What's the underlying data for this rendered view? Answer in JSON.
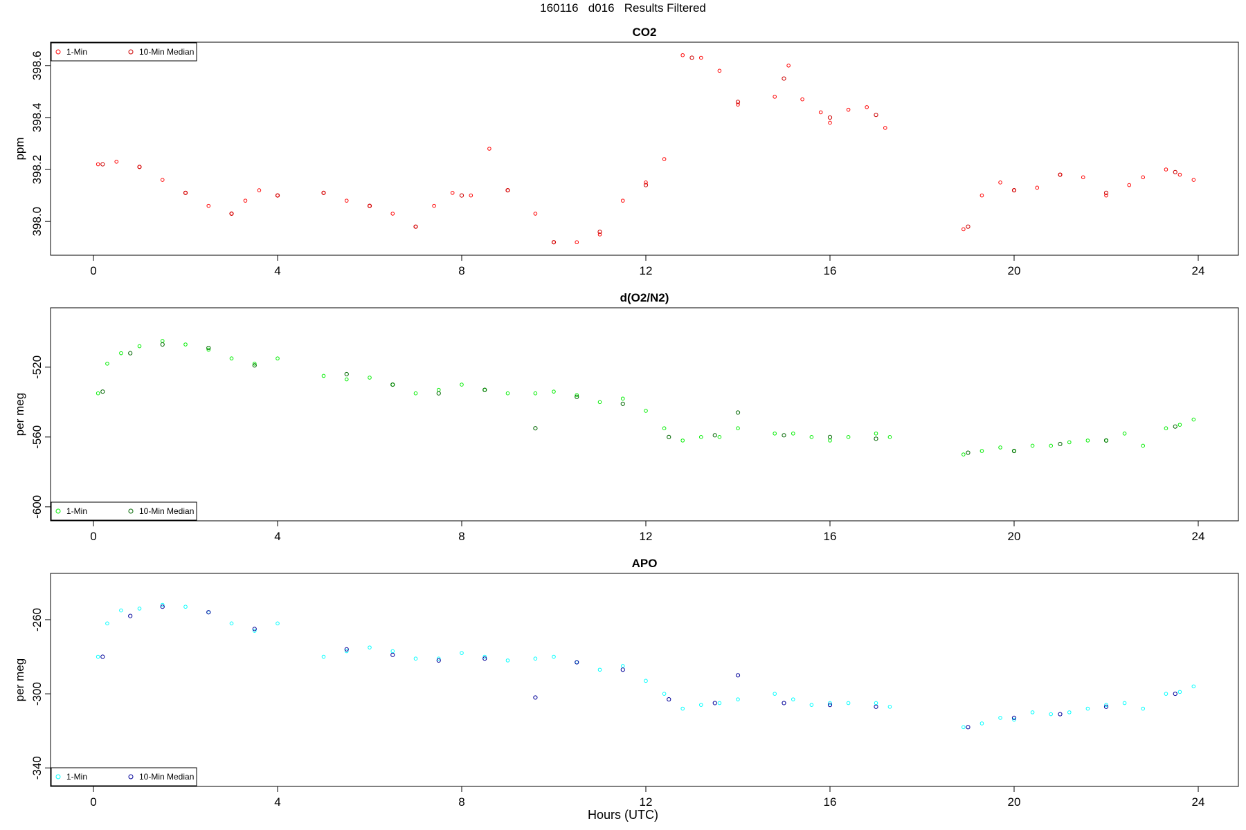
{
  "figure_title": "160116   d016   Results Filtered",
  "x_axis_label": "Hours (UTC)",
  "chart_data": [
    {
      "type": "scatter",
      "title": "CO2",
      "ylabel": "ppm",
      "xlim": [
        0,
        24
      ],
      "ylim": [
        397.87,
        398.69
      ],
      "xticks": [
        0,
        4,
        8,
        12,
        16,
        20,
        24
      ],
      "yticks": [
        398.0,
        398.2,
        398.4,
        398.6
      ],
      "ytick_labels": [
        "398.0",
        "398.2",
        "398.4",
        "398.6"
      ],
      "legend_position": "top-left",
      "series": [
        {
          "name": "1-Min",
          "color": "#ff0000",
          "marker": "open-circle",
          "x": [
            0.1,
            0.5,
            1.0,
            1.5,
            2.0,
            2.5,
            3.0,
            3.3,
            3.6,
            4.0,
            5.0,
            5.5,
            6.0,
            6.5,
            7.0,
            7.4,
            7.8,
            8.2,
            8.6,
            9.0,
            9.6,
            10.0,
            10.5,
            11.0,
            11.5,
            12.0,
            12.4,
            12.8,
            13.2,
            13.6,
            14.0,
            14.8,
            15.1,
            15.4,
            15.8,
            16.0,
            16.4,
            16.8,
            17.2,
            18.9,
            19.3,
            19.7,
            20.0,
            20.5,
            21.0,
            21.5,
            22.0,
            22.5,
            22.8,
            23.3,
            23.6,
            23.9
          ],
          "y": [
            398.22,
            398.23,
            398.21,
            398.16,
            398.11,
            398.06,
            398.03,
            398.08,
            398.12,
            398.1,
            398.11,
            398.08,
            398.06,
            398.03,
            397.98,
            398.06,
            398.11,
            398.1,
            398.28,
            398.12,
            398.03,
            397.92,
            397.92,
            397.95,
            398.08,
            398.15,
            398.24,
            398.64,
            398.63,
            398.58,
            398.45,
            398.48,
            398.6,
            398.47,
            398.42,
            398.38,
            398.43,
            398.44,
            398.36,
            397.97,
            398.1,
            398.15,
            398.12,
            398.13,
            398.18,
            398.17,
            398.1,
            398.14,
            398.17,
            398.2,
            398.18,
            398.16
          ]
        },
        {
          "name": "10-Min Median",
          "color": "#cc0000",
          "marker": "open-circle",
          "x": [
            0.2,
            1.0,
            2.0,
            3.0,
            4.0,
            5.0,
            6.0,
            7.0,
            8.0,
            9.0,
            10.0,
            11.0,
            12.0,
            13.0,
            14.0,
            15.0,
            16.0,
            17.0,
            19.0,
            20.0,
            21.0,
            22.0,
            23.5
          ],
          "y": [
            398.22,
            398.21,
            398.11,
            398.03,
            398.1,
            398.11,
            398.06,
            397.98,
            398.1,
            398.12,
            397.92,
            397.96,
            398.14,
            398.63,
            398.46,
            398.55,
            398.4,
            398.41,
            397.98,
            398.12,
            398.18,
            398.11,
            398.19
          ]
        }
      ]
    },
    {
      "type": "scatter",
      "title": "d(O2/N2)",
      "ylabel": "per meg",
      "xlim": [
        0,
        24
      ],
      "ylim": [
        -608,
        -486
      ],
      "xticks": [
        0,
        4,
        8,
        12,
        16,
        20,
        24
      ],
      "yticks": [
        -600,
        -560,
        -520
      ],
      "ytick_labels": [
        "-600",
        "-560",
        "-520"
      ],
      "legend_position": "bottom-left",
      "series": [
        {
          "name": "1-Min",
          "color": "#00ee00",
          "marker": "open-circle",
          "x": [
            0.1,
            0.3,
            0.6,
            1.0,
            1.5,
            2.0,
            2.5,
            3.0,
            3.5,
            4.0,
            5.0,
            5.5,
            6.0,
            6.5,
            7.0,
            7.5,
            8.0,
            8.5,
            9.0,
            9.6,
            10.0,
            10.5,
            11.0,
            11.5,
            12.0,
            12.4,
            12.8,
            13.2,
            13.6,
            14.0,
            14.8,
            15.2,
            15.6,
            16.0,
            16.4,
            17.0,
            17.3,
            18.9,
            19.3,
            19.7,
            20.0,
            20.4,
            20.8,
            21.2,
            21.6,
            22.0,
            22.4,
            22.8,
            23.3,
            23.6,
            23.9
          ],
          "y": [
            -535,
            -518,
            -512,
            -508,
            -505,
            -507,
            -510,
            -515,
            -518,
            -515,
            -525,
            -527,
            -526,
            -530,
            -535,
            -533,
            -530,
            -533,
            -535,
            -535,
            -534,
            -536,
            -540,
            -538,
            -545,
            -555,
            -562,
            -560,
            -560,
            -555,
            -558,
            -558,
            -560,
            -562,
            -560,
            -558,
            -560,
            -570,
            -568,
            -566,
            -568,
            -565,
            -565,
            -563,
            -562,
            -562,
            -558,
            -565,
            -555,
            -553,
            -550
          ]
        },
        {
          "name": "10-Min Median",
          "color": "#006600",
          "marker": "open-circle",
          "x": [
            0.2,
            0.8,
            1.5,
            2.5,
            3.5,
            5.5,
            6.5,
            7.5,
            8.5,
            9.6,
            10.5,
            11.5,
            12.5,
            13.5,
            14.0,
            15.0,
            16.0,
            17.0,
            19.0,
            20.0,
            21.0,
            22.0,
            23.5
          ],
          "y": [
            -534,
            -512,
            -507,
            -509,
            -519,
            -524,
            -530,
            -535,
            -533,
            -555,
            -537,
            -541,
            -560,
            -559,
            -546,
            -559,
            -560,
            -561,
            -569,
            -568,
            -564,
            -562,
            -554
          ]
        }
      ]
    },
    {
      "type": "scatter",
      "title": "APO",
      "ylabel": "per meg",
      "xlim": [
        0,
        24
      ],
      "ylim": [
        -350,
        -235
      ],
      "xticks": [
        0,
        4,
        8,
        12,
        16,
        20,
        24
      ],
      "yticks": [
        -340,
        -300,
        -260
      ],
      "ytick_labels": [
        "-340",
        "-300",
        "-260"
      ],
      "legend_position": "bottom-left",
      "series": [
        {
          "name": "1-Min",
          "color": "#00ffff",
          "marker": "open-circle",
          "x": [
            0.1,
            0.3,
            0.6,
            1.0,
            1.5,
            2.0,
            2.5,
            3.0,
            3.5,
            4.0,
            5.0,
            5.5,
            6.0,
            6.5,
            7.0,
            7.5,
            8.0,
            8.5,
            9.0,
            9.6,
            10.0,
            10.5,
            11.0,
            11.5,
            12.0,
            12.4,
            12.8,
            13.2,
            13.6,
            14.0,
            14.8,
            15.2,
            15.6,
            16.0,
            16.4,
            17.0,
            17.3,
            18.9,
            19.3,
            19.7,
            20.0,
            20.4,
            20.8,
            21.2,
            21.6,
            22.0,
            22.4,
            22.8,
            23.3,
            23.6,
            23.9
          ],
          "y": [
            -280,
            -262,
            -255,
            -254,
            -252,
            -253,
            -256,
            -262,
            -266,
            -262,
            -280,
            -277,
            -275,
            -277,
            -281,
            -281,
            -278,
            -280,
            -282,
            -281,
            -280,
            -283,
            -287,
            -285,
            -293,
            -300,
            -308,
            -306,
            -305,
            -303,
            -300,
            -303,
            -306,
            -305,
            -305,
            -305,
            -307,
            -318,
            -316,
            -313,
            -314,
            -310,
            -311,
            -310,
            -308,
            -306,
            -305,
            -308,
            -300,
            -299,
            -296
          ]
        },
        {
          "name": "10-Min Median",
          "color": "#000099",
          "marker": "open-circle",
          "x": [
            0.2,
            0.8,
            1.5,
            2.5,
            3.5,
            5.5,
            6.5,
            7.5,
            8.5,
            9.6,
            10.5,
            11.5,
            12.5,
            13.5,
            14.0,
            15.0,
            16.0,
            17.0,
            19.0,
            20.0,
            21.0,
            22.0,
            23.5
          ],
          "y": [
            -280,
            -258,
            -253,
            -256,
            -265,
            -276,
            -279,
            -282,
            -281,
            -302,
            -283,
            -287,
            -303,
            -305,
            -290,
            -305,
            -306,
            -307,
            -318,
            -313,
            -311,
            -307,
            -300
          ]
        }
      ]
    }
  ]
}
